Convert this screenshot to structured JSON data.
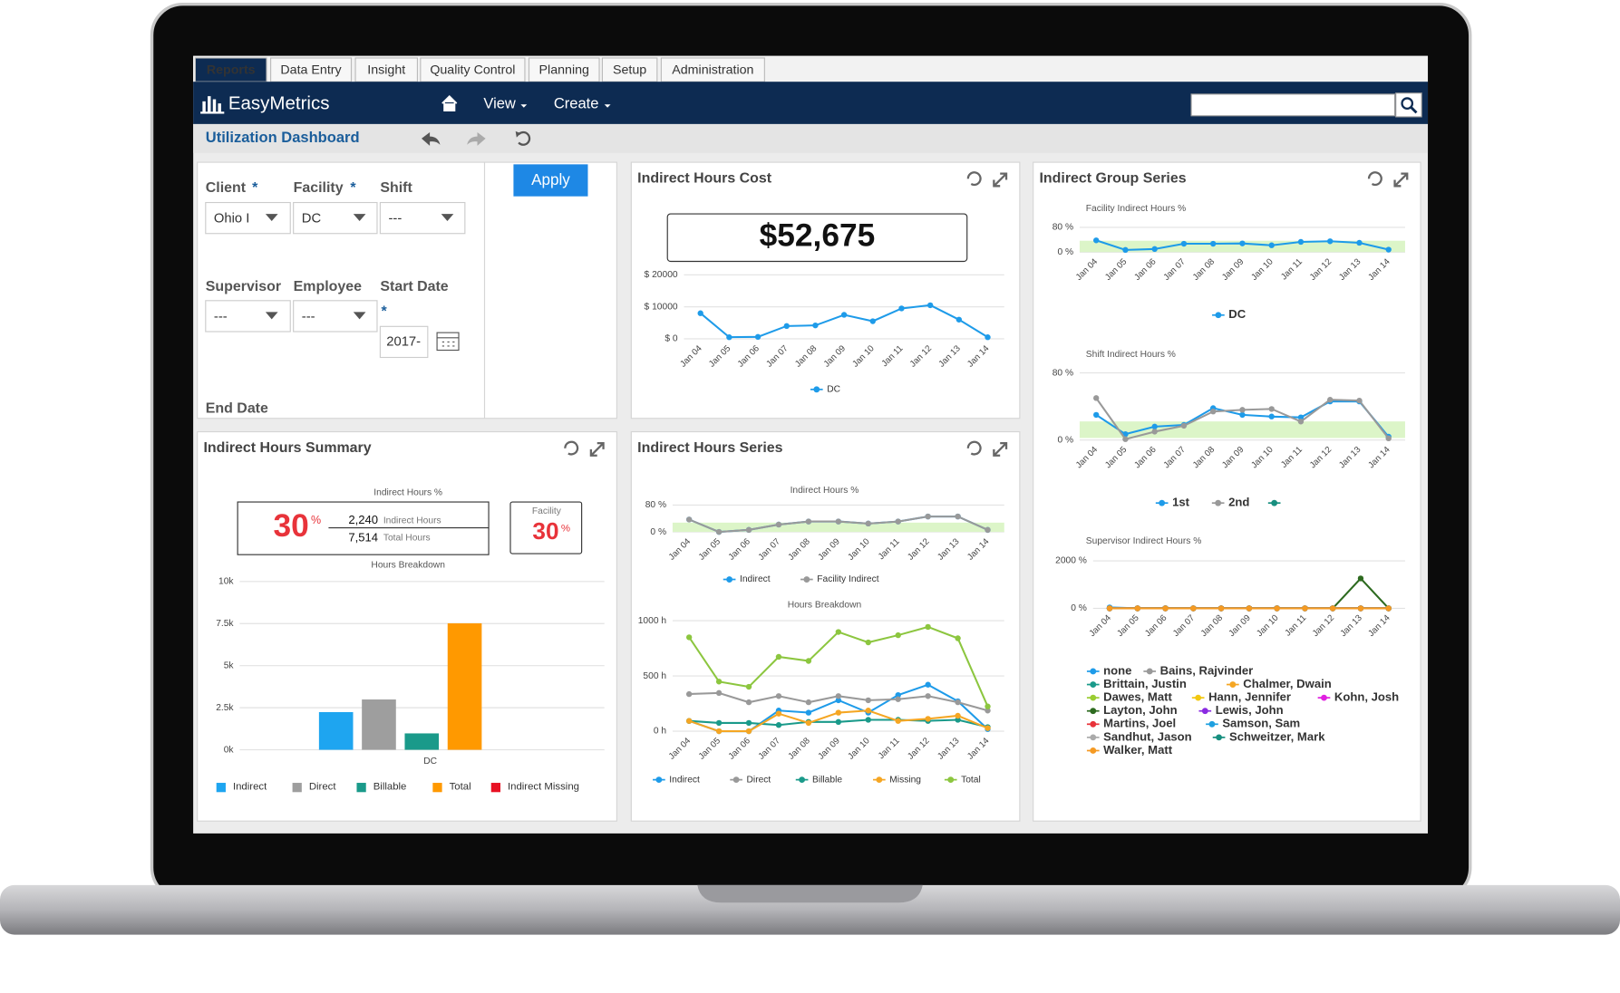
{
  "tabs": [
    "Reports",
    "Data Entry",
    "Insight",
    "Quality Control",
    "Planning",
    "Setup",
    "Administration"
  ],
  "header": {
    "logo": "EasyMetrics",
    "nav": [
      "View",
      "Create"
    ]
  },
  "toolbar": {
    "title": "Utilization Dashboard"
  },
  "filters": {
    "client": {
      "label": "Client",
      "required": "*",
      "value": "Ohio I"
    },
    "facility": {
      "label": "Facility",
      "required": "*",
      "value": "DC"
    },
    "shift": {
      "label": "Shift",
      "value": "---"
    },
    "supervisor": {
      "label": "Supervisor",
      "value": "---"
    },
    "employee": {
      "label": "Employee",
      "value": "---"
    },
    "start_date": {
      "label": "Start Date",
      "required": "*",
      "value": "2017-"
    },
    "end_date": {
      "label": "End Date"
    },
    "apply": "Apply"
  },
  "panels": [
    {
      "title": "Indirect Hours Cost",
      "kpi": "$52,675",
      "charts": [
        {
          "type": "line",
          "categories": [
            "Jan 04",
            "Jan 05",
            "Jan 06",
            "Jan 07",
            "Jan 08",
            "Jan 09",
            "Jan 10",
            "Jan 11",
            "Jan 12",
            "Jan 13",
            "Jan 14"
          ],
          "ylim": [
            0,
            20000
          ],
          "yticks": [
            {
              "value": 0,
              "label": "$ 0"
            },
            {
              "value": 10000,
              "label": "$ 10000"
            },
            {
              "value": 20000,
              "label": "$ 20000"
            }
          ],
          "series": [
            {
              "name": "DC",
              "color": "#1e9be9",
              "values": [
                8000,
                500,
                600,
                4000,
                4200,
                7500,
                5500,
                9500,
                10500,
                6000,
                500
              ]
            }
          ]
        }
      ]
    },
    {
      "title": "Indirect Group Series",
      "charts": [
        {
          "type": "line",
          "title": "Facility Indirect Hours %",
          "categories": [
            "Jan 04",
            "Jan 05",
            "Jan 06",
            "Jan 07",
            "Jan 08",
            "Jan 09",
            "Jan 10",
            "Jan 11",
            "Jan 12",
            "Jan 13",
            "Jan 14"
          ],
          "ylim": [
            0,
            80
          ],
          "yticks": [
            {
              "value": 0,
              "label": "0 %"
            },
            {
              "value": 80,
              "label": "80 %"
            }
          ],
          "series": [
            {
              "name": "DC",
              "color": "#1e9be9",
              "values": [
                38,
                7,
                10,
                27,
                27,
                28,
                22,
                33,
                35,
                30,
                8
              ]
            }
          ]
        },
        {
          "type": "line",
          "title": "Shift Indirect Hours %",
          "categories": [
            "Jan 04",
            "Jan 05",
            "Jan 06",
            "Jan 07",
            "Jan 08",
            "Jan 09",
            "Jan 10",
            "Jan 11",
            "Jan 12",
            "Jan 13",
            "Jan 14"
          ],
          "ylim": [
            0,
            80
          ],
          "yticks": [
            {
              "value": 0,
              "label": "0 %"
            },
            {
              "value": 80,
              "label": "80 %"
            }
          ],
          "series": [
            {
              "name": "1st",
              "color": "#1e9be9",
              "values": [
                30,
                7,
                16,
                18,
                38,
                30,
                28,
                27,
                46,
                46,
                4
              ]
            },
            {
              "name": "2nd",
              "color": "#999999",
              "values": [
                50,
                1,
                10,
                17,
                34,
                36,
                37,
                22,
                48,
                47,
                2
              ]
            },
            {
              "name": null,
              "color": "#178f7f",
              "values": [
                null,
                null,
                null,
                null,
                null,
                null,
                null,
                null,
                null,
                null,
                null
              ]
            }
          ]
        },
        {
          "type": "line",
          "title": "Supervisor Indirect Hours %",
          "categories": [
            "Jan 04",
            "Jan 05",
            "Jan 06",
            "Jan 07",
            "Jan 08",
            "Jan 09",
            "Jan 10",
            "Jan 11",
            "Jan 12",
            "Jan 13",
            "Jan 14"
          ],
          "ylim": [
            0,
            2000
          ],
          "yticks": [
            {
              "value": 0,
              "label": "0 %"
            },
            {
              "value": 2000,
              "label": "2000 %"
            }
          ],
          "series": [
            {
              "name": "none",
              "color": "#1e9be9",
              "values": [
                40,
                0,
                10,
                0,
                0,
                0,
                10,
                0,
                0,
                0,
                0
              ]
            },
            {
              "name": "Bains, Rajvinder",
              "color": "#999999",
              "values": [
                0,
                0,
                0,
                0,
                0,
                0,
                0,
                0,
                0,
                0,
                0
              ]
            },
            {
              "name": "Brittain, Justin",
              "color": "#1a9a8a",
              "values": [
                0,
                0,
                0,
                0,
                0,
                0,
                0,
                0,
                0,
                0,
                0
              ]
            },
            {
              "name": "Chalmer, Dwain",
              "color": "#f5a623",
              "values": [
                0,
                0,
                0,
                0,
                0,
                0,
                0,
                0,
                0,
                0,
                0
              ]
            },
            {
              "name": "Dawes, Matt",
              "color": "#9acd32",
              "values": [
                0,
                0,
                0,
                0,
                0,
                0,
                0,
                0,
                0,
                0,
                0
              ]
            },
            {
              "name": "Hann, Jennifer",
              "color": "#f2c811",
              "values": [
                0,
                0,
                0,
                0,
                0,
                0,
                0,
                0,
                0,
                0,
                0
              ]
            },
            {
              "name": "Kohn, Josh",
              "color": "#e020e0",
              "values": [
                0,
                0,
                0,
                0,
                0,
                0,
                0,
                0,
                0,
                0,
                0
              ]
            },
            {
              "name": "Layton, John",
              "color": "#2d6a1f",
              "values": [
                0,
                0,
                0,
                0,
                0,
                0,
                0,
                0,
                0,
                1260,
                0
              ]
            },
            {
              "name": "Lewis, John",
              "color": "#8a2be2",
              "values": [
                0,
                0,
                0,
                0,
                0,
                0,
                0,
                0,
                0,
                0,
                0
              ]
            },
            {
              "name": "Martins, Joel",
              "color": "#e8333a",
              "values": [
                0,
                0,
                0,
                0,
                0,
                0,
                0,
                0,
                0,
                0,
                0
              ]
            },
            {
              "name": "Samson, Sam",
              "color": "#1ea0e0",
              "values": [
                0,
                0,
                0,
                0,
                0,
                0,
                0,
                0,
                0,
                0,
                0
              ]
            },
            {
              "name": "Sandhut, Jason",
              "color": "#aaaaaa",
              "values": [
                0,
                0,
                0,
                0,
                0,
                0,
                0,
                0,
                0,
                0,
                0
              ]
            },
            {
              "name": "Schweitzer, Mark",
              "color": "#178f7f",
              "values": [
                0,
                0,
                0,
                0,
                0,
                0,
                0,
                0,
                0,
                0,
                0
              ]
            },
            {
              "name": "Walker, Matt",
              "color": "#f59a23",
              "values": [
                0,
                0,
                0,
                0,
                0,
                0,
                0,
                0,
                0,
                0,
                0
              ]
            }
          ]
        }
      ]
    },
    {
      "title": "Indirect Hours Summary",
      "summary": {
        "title": "Indirect Hours %",
        "value": 30,
        "unit": "%",
        "indirect": "2,240",
        "indirect_label": "Indirect Hours",
        "total": "7,514",
        "total_label": "Total Hours",
        "facility_label": "Facility",
        "facility_value": 30,
        "facility_unit": "%"
      },
      "charts": [
        {
          "type": "bar",
          "title": "Hours Breakdown",
          "categories": [
            "DC"
          ],
          "ylim": [
            0,
            10000
          ],
          "yticks": [
            {
              "value": 0,
              "label": "0k"
            },
            {
              "value": 2500,
              "label": "2.5k"
            },
            {
              "value": 5000,
              "label": "5k"
            },
            {
              "value": 7500,
              "label": "7.5k"
            },
            {
              "value": 10000,
              "label": "10k"
            }
          ],
          "series": [
            {
              "name": "Indirect",
              "color": "#1ea5f0",
              "values": [
                2240
              ]
            },
            {
              "name": "Direct",
              "color": "#9e9e9e",
              "values": [
                2990
              ]
            },
            {
              "name": "Billable",
              "color": "#1a9a8a",
              "values": [
                975
              ]
            },
            {
              "name": "Total",
              "color": "#ff9900",
              "values": [
                7514
              ]
            },
            {
              "name": "Indirect Missing",
              "color": "#e81123",
              "values": [
                0
              ]
            }
          ]
        }
      ]
    },
    {
      "title": "Indirect Hours Series",
      "charts": [
        {
          "type": "line",
          "title": "Indirect Hours %",
          "categories": [
            "Jan 04",
            "Jan 05",
            "Jan 06",
            "Jan 07",
            "Jan 08",
            "Jan 09",
            "Jan 10",
            "Jan 11",
            "Jan 12",
            "Jan 13",
            "Jan 14"
          ],
          "ylim": [
            0,
            80
          ],
          "yticks": [
            {
              "value": 0,
              "label": "0 %"
            },
            {
              "value": 80,
              "label": "80 %"
            }
          ],
          "series": [
            {
              "name": "Indirect",
              "color": "#1e9be9",
              "values": [
                37,
                0,
                6,
                22,
                31,
                31,
                25,
                31,
                46,
                46,
                6
              ]
            },
            {
              "name": "Facility Indirect",
              "color": "#999999",
              "values": [
                37,
                0,
                6,
                22,
                31,
                31,
                25,
                31,
                46,
                46,
                6
              ]
            }
          ]
        },
        {
          "type": "line",
          "title": "Hours Breakdown",
          "categories": [
            "Jan 04",
            "Jan 05",
            "Jan 06",
            "Jan 07",
            "Jan 08",
            "Jan 09",
            "Jan 10",
            "Jan 11",
            "Jan 12",
            "Jan 13",
            "Jan 14"
          ],
          "ylim": [
            0,
            1000
          ],
          "yticks": [
            {
              "value": 0,
              "label": "0 h"
            },
            {
              "value": 500,
              "label": "500 h"
            },
            {
              "value": 1000,
              "label": "1000 h"
            }
          ],
          "series": [
            {
              "name": "Indirect",
              "color": "#1e9be9",
              "values": [
                93,
                0,
                0,
                187,
                168,
                280,
                168,
                327,
                421,
                271,
                19
              ]
            },
            {
              "name": "Direct",
              "color": "#999999",
              "values": [
                336,
                346,
                262,
                318,
                262,
                318,
                280,
                290,
                318,
                262,
                187
              ]
            },
            {
              "name": "Billable",
              "color": "#1a9a8a",
              "values": [
                93,
                75,
                75,
                56,
                84,
                84,
                103,
                103,
                93,
                103,
                37
              ]
            },
            {
              "name": "Missing",
              "color": "#f5a623",
              "values": [
                93,
                0,
                0,
                159,
                75,
                168,
                187,
                93,
                112,
                140,
                28
              ]
            },
            {
              "name": "Total",
              "color": "#8cc63f",
              "values": [
                850,
                449,
                402,
                673,
                636,
                898,
                804,
                869,
                944,
                841,
                224
              ]
            }
          ]
        }
      ]
    }
  ]
}
